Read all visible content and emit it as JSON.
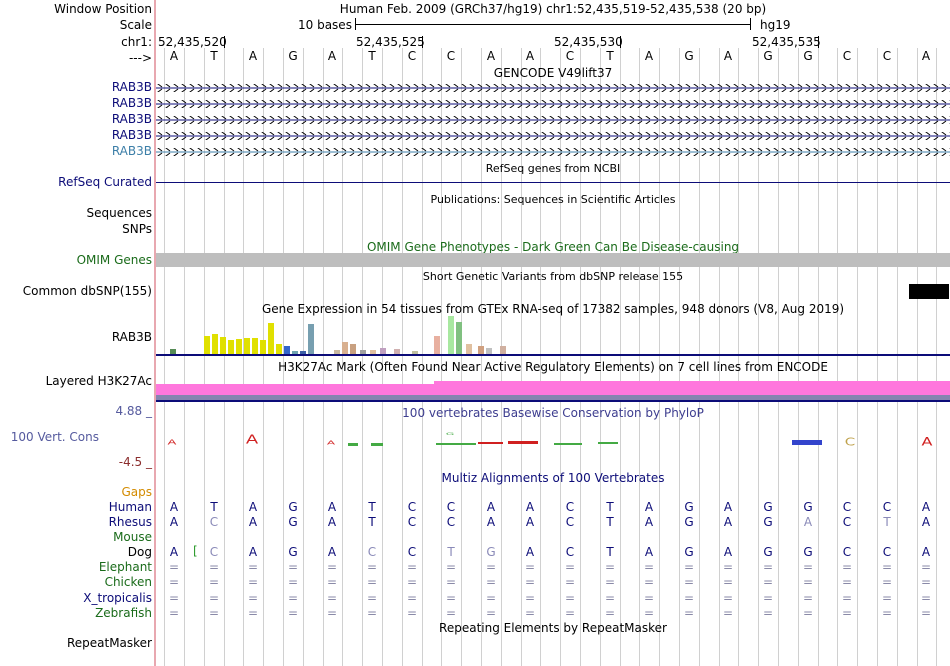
{
  "header": {
    "window_position_label": "Window Position",
    "scale_label": "Scale",
    "chr_label": "chr1:",
    "strand_label": "--->",
    "position_text": "Human Feb. 2009 (GRCh37/hg19)   chr1:52,435,519-52,435,538 (20 bp)",
    "scale_text": "10 bases",
    "assembly": "hg19",
    "ticks": [
      "52,435,520",
      "52,435,525",
      "52,435,530",
      "52,435,535"
    ]
  },
  "sequence": [
    "A",
    "T",
    "A",
    "G",
    "A",
    "T",
    "C",
    "C",
    "A",
    "A",
    "C",
    "T",
    "A",
    "G",
    "A",
    "G",
    "G",
    "C",
    "C",
    "A"
  ],
  "tracks": {
    "gencode": {
      "title": "GENCODE V49lift37",
      "labels": [
        "RAB3B",
        "RAB3B",
        "RAB3B",
        "RAB3B",
        "RAB3B"
      ]
    },
    "refseq": {
      "title": "RefSeq genes from NCBI",
      "label": "RefSeq Curated"
    },
    "publications": {
      "title": "Publications: Sequences in Scientific Articles",
      "label_sequences": "Sequences",
      "label_snps": "SNPs"
    },
    "omim": {
      "title": "OMIM Gene Phenotypes - Dark Green Can Be Disease-causing",
      "label": "OMIM Genes"
    },
    "dbsnp": {
      "title": "Short Genetic Variants from dbSNP release 155",
      "label": "Common dbSNP(155)"
    },
    "gtex": {
      "title": "Gene Expression in 54 tissues from GTEx RNA-seq of 17382 samples, 948 donors (V8, Aug 2019)",
      "label": "RAB3B"
    },
    "h3k27ac": {
      "title": "H3K27Ac Mark (Often Found Near Active Regulatory Elements) on 7 cell lines from ENCODE",
      "label": "Layered H3K27Ac"
    },
    "conservation": {
      "title": "100 vertebrates Basewise Conservation by PhyloP",
      "label": "100 Vert. Cons",
      "max": "4.88 _",
      "min": "-4.5 _"
    },
    "multiz": {
      "title": "Multiz Alignments of 100 Vertebrates",
      "gaps_label": "Gaps",
      "species": [
        {
          "name": "Human",
          "bases": [
            "A",
            "T",
            "A",
            "G",
            "A",
            "T",
            "C",
            "C",
            "A",
            "A",
            "C",
            "T",
            "A",
            "G",
            "A",
            "G",
            "G",
            "C",
            "C",
            "A"
          ]
        },
        {
          "name": "Rhesus",
          "bases": [
            "A",
            "C",
            "A",
            "G",
            "A",
            "T",
            "C",
            "C",
            "A",
            "A",
            "C",
            "T",
            "A",
            "G",
            "A",
            "G",
            "A",
            "C",
            "T",
            "A"
          ]
        },
        {
          "name": "Mouse",
          "bases": [
            "",
            "",
            "",
            "",
            "",
            "",
            "",
            "",
            "",
            "",
            "",
            "",
            "",
            "",
            "",
            "",
            "",
            "",
            "",
            ""
          ]
        },
        {
          "name": "Dog",
          "bases": [
            "A",
            "C",
            "A",
            "G",
            "A",
            "C",
            "C",
            "T",
            "G",
            "A",
            "C",
            "T",
            "A",
            "G",
            "A",
            "G",
            "G",
            "C",
            "C",
            "A"
          ]
        },
        {
          "name": "Elephant",
          "bases": [
            "=",
            "=",
            "=",
            "=",
            "=",
            "=",
            "=",
            "=",
            "=",
            "=",
            "=",
            "=",
            "=",
            "=",
            "=",
            "=",
            "=",
            "=",
            "=",
            "="
          ]
        },
        {
          "name": "Chicken",
          "bases": [
            "=",
            "=",
            "=",
            "=",
            "=",
            "=",
            "=",
            "=",
            "=",
            "=",
            "=",
            "=",
            "=",
            "=",
            "=",
            "=",
            "=",
            "=",
            "=",
            "="
          ]
        },
        {
          "name": "X_tropicalis",
          "bases": [
            "=",
            "=",
            "=",
            "=",
            "=",
            "=",
            "=",
            "=",
            "=",
            "=",
            "=",
            "=",
            "=",
            "=",
            "=",
            "=",
            "=",
            "=",
            "=",
            "="
          ]
        },
        {
          "name": "Zebrafish",
          "bases": [
            "=",
            "=",
            "=",
            "=",
            "=",
            "=",
            "=",
            "=",
            "=",
            "=",
            "=",
            "=",
            "=",
            "=",
            "=",
            "=",
            "=",
            "=",
            "=",
            "="
          ]
        }
      ]
    },
    "repeatmasker": {
      "title": "Repeating Elements by RepeatMasker",
      "label": "RepeatMasker"
    }
  },
  "gtex_bars": [
    {
      "c": "#558b55",
      "h": 5
    },
    {
      "c": "#e0e000",
      "h": 18
    },
    {
      "c": "#e0e000",
      "h": 20
    },
    {
      "c": "#e0e000",
      "h": 17
    },
    {
      "c": "#e0e000",
      "h": 14
    },
    {
      "c": "#e0e000",
      "h": 15
    },
    {
      "c": "#e0e000",
      "h": 16
    },
    {
      "c": "#e0e000",
      "h": 16
    },
    {
      "c": "#e0e000",
      "h": 14
    },
    {
      "c": "#e0e000",
      "h": 31
    },
    {
      "c": "#e0e000",
      "h": 10
    },
    {
      "c": "#3366cc",
      "h": 8
    },
    {
      "c": "#6fa3b0",
      "h": 3
    },
    {
      "c": "#3b5fa6",
      "h": 3
    },
    {
      "c": "#779fb0",
      "h": 30
    },
    {
      "c": "#c8b8a0",
      "h": 4
    },
    {
      "c": "#d8b090",
      "h": 12
    },
    {
      "c": "#c8a080",
      "h": 10
    },
    {
      "c": "#a0a0a0",
      "h": 4
    },
    {
      "c": "#e0c0a0",
      "h": 4
    },
    {
      "c": "#c0a0c0",
      "h": 6
    },
    {
      "c": "#d0b0b0",
      "h": 5
    },
    {
      "c": "#c0c0a0",
      "h": 3
    },
    {
      "c": "#e8b0a0",
      "h": 18
    },
    {
      "c": "#a8e8a0",
      "h": 38
    },
    {
      "c": "#80c080",
      "h": 32
    },
    {
      "c": "#e0c0a0",
      "h": 10
    },
    {
      "c": "#d0a080",
      "h": 8
    },
    {
      "c": "#c0c0c0",
      "h": 6
    },
    {
      "c": "#d0b0a0",
      "h": 8
    }
  ]
}
